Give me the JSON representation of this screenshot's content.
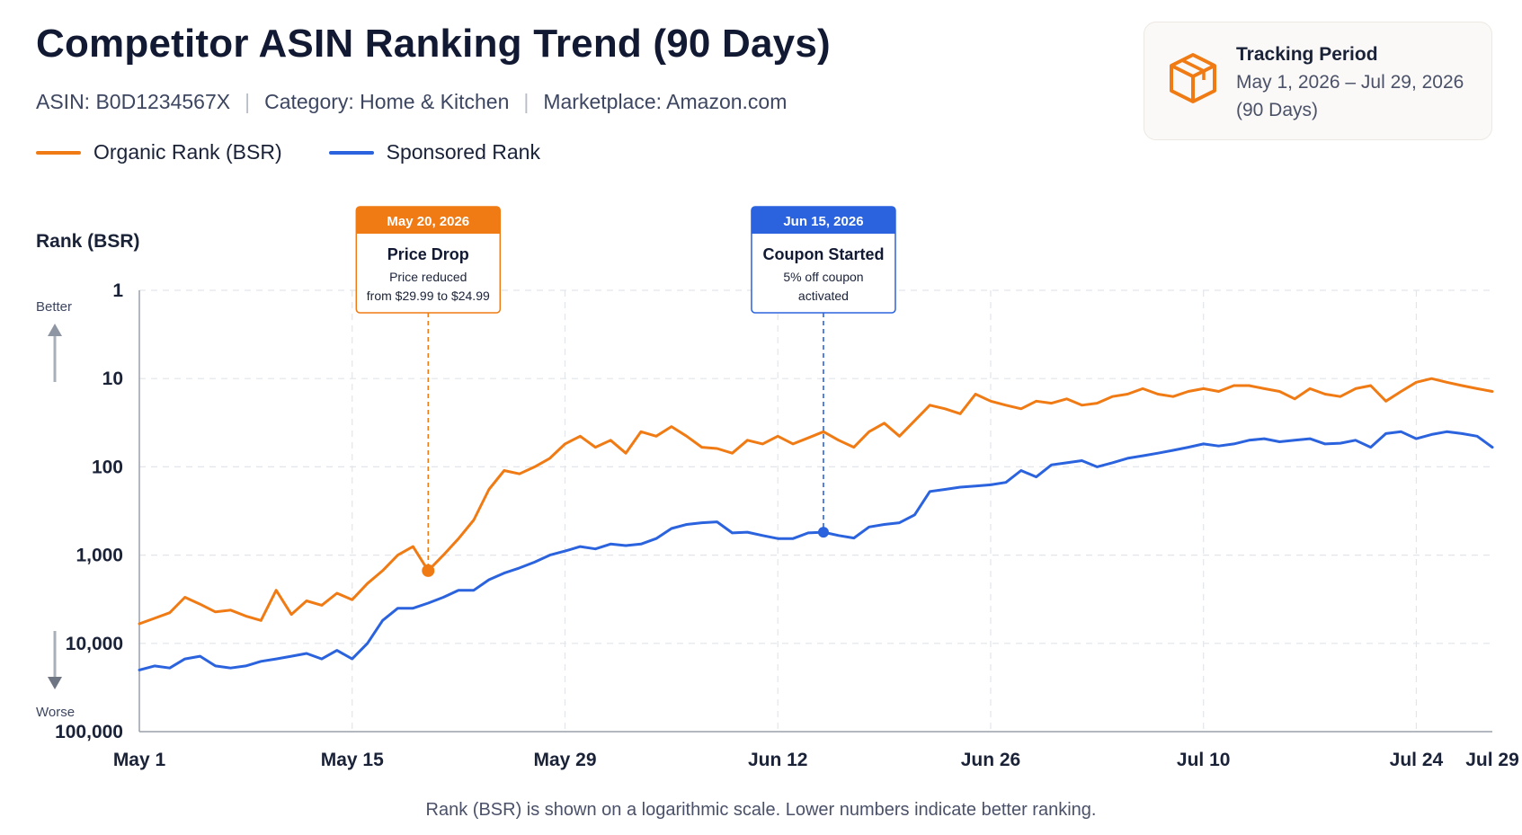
{
  "header": {
    "title": "Competitor ASIN Ranking Trend (90 Days)",
    "asin": "ASIN: B0D1234567X",
    "category": "Category: Home & Kitchen",
    "marketplace": "Marketplace: Amazon.com",
    "separator": "|"
  },
  "tracking_period": {
    "label": "Tracking Period",
    "range": "May 1, 2026 – Jul 29, 2026",
    "days": "(90 Days)",
    "icon": "box-icon",
    "accent": "#f07b14"
  },
  "footnote": "Rank (BSR) is shown on a logarithmic scale. Lower numbers indicate better ranking.",
  "chart_data": {
    "type": "line",
    "title": "Competitor ASIN Ranking Trend (90 Days)",
    "ylabel": "Rank (BSR)",
    "y_scale": "log",
    "y_inverted": true,
    "ylim": [
      100000,
      1
    ],
    "y_ticks": [
      1,
      10,
      100,
      1000,
      10000,
      100000
    ],
    "y_tick_labels": [
      "1",
      "10",
      "100",
      "1,000",
      "10,000",
      "100,000"
    ],
    "y_direction_labels": {
      "top": "Better",
      "bottom": "Worse"
    },
    "x_ticks": [
      0,
      14,
      28,
      42,
      56,
      70,
      84,
      89
    ],
    "x_tick_labels": [
      "May 1",
      "May 15",
      "May 29",
      "Jun 12",
      "Jun 26",
      "Jul 10",
      "Jul 24",
      "Jul 29"
    ],
    "x_unit": "days since May 1, 2026",
    "grid": true,
    "legend_position": "top-left",
    "series": [
      {
        "name": "Organic Rank (BSR)",
        "color": "#f07b14",
        "x": [
          0,
          1,
          2,
          3,
          4,
          5,
          6,
          7,
          8,
          9,
          10,
          11,
          12,
          13,
          14,
          15,
          16,
          17,
          18,
          19,
          20,
          21,
          22,
          23,
          24,
          25,
          26,
          27,
          28,
          29,
          30,
          31,
          32,
          33,
          34,
          35,
          36,
          37,
          38,
          39,
          40,
          41,
          42,
          43,
          44,
          45,
          46,
          47,
          48,
          49,
          50,
          51,
          52,
          53,
          54,
          55,
          56,
          57,
          58,
          59,
          60,
          61,
          62,
          63,
          64,
          65,
          66,
          67,
          68,
          69,
          70,
          71,
          72,
          73,
          74,
          75,
          76,
          77,
          78,
          79,
          80,
          81,
          82,
          83,
          84,
          85,
          86,
          87,
          88,
          89
        ],
        "values": [
          6000,
          5200,
          4500,
          3000,
          3600,
          4400,
          4200,
          4900,
          5500,
          2500,
          4700,
          3300,
          3700,
          2700,
          3200,
          2100,
          1500,
          1000,
          800,
          1500,
          1000,
          650,
          400,
          180,
          110,
          120,
          100,
          80,
          55,
          45,
          60,
          50,
          70,
          40,
          45,
          35,
          45,
          60,
          62,
          70,
          50,
          55,
          45,
          55,
          47,
          40,
          50,
          60,
          40,
          32,
          45,
          30,
          20,
          22,
          25,
          15,
          18,
          20,
          22,
          18,
          19,
          17,
          20,
          19,
          16,
          15,
          13,
          15,
          16,
          14,
          13,
          14,
          12,
          12,
          13,
          14,
          17,
          13,
          15,
          16,
          13,
          12,
          18,
          14,
          11,
          10,
          11,
          12,
          13,
          14
        ]
      },
      {
        "name": "Sponsored Rank",
        "color": "#2b63de",
        "x": [
          0,
          1,
          2,
          3,
          4,
          5,
          6,
          7,
          8,
          9,
          10,
          11,
          12,
          13,
          14,
          15,
          16,
          17,
          18,
          19,
          20,
          21,
          22,
          23,
          24,
          25,
          26,
          27,
          28,
          29,
          30,
          31,
          32,
          33,
          34,
          35,
          36,
          37,
          38,
          39,
          40,
          41,
          42,
          43,
          44,
          45,
          46,
          47,
          48,
          49,
          50,
          51,
          52,
          53,
          54,
          55,
          56,
          57,
          58,
          59,
          60,
          61,
          62,
          63,
          64,
          65,
          66,
          67,
          68,
          69,
          70,
          71,
          72,
          73,
          74,
          75,
          76,
          77,
          78,
          79,
          80,
          81,
          82,
          83,
          84,
          85,
          86,
          87,
          88,
          89
        ],
        "values": [
          20000,
          18000,
          19000,
          15000,
          14000,
          18000,
          19000,
          18000,
          16000,
          15000,
          14000,
          13000,
          15000,
          12000,
          15000,
          10000,
          5500,
          4000,
          4000,
          3500,
          3000,
          2500,
          2500,
          1900,
          1600,
          1400,
          1200,
          1000,
          900,
          800,
          850,
          750,
          780,
          750,
          650,
          500,
          450,
          430,
          420,
          560,
          550,
          600,
          650,
          650,
          560,
          550,
          600,
          640,
          480,
          450,
          430,
          350,
          190,
          180,
          170,
          165,
          160,
          150,
          110,
          130,
          95,
          90,
          85,
          100,
          90,
          80,
          75,
          70,
          65,
          60,
          55,
          58,
          55,
          50,
          48,
          52,
          50,
          48,
          55,
          54,
          50,
          60,
          42,
          40,
          48,
          43,
          40,
          42,
          45,
          60
        ]
      }
    ],
    "annotations": [
      {
        "date": "May 20, 2026",
        "x": 19,
        "title": "Price Drop",
        "line1": "Price reduced",
        "line2": "from $29.99 to $24.99",
        "series": 0,
        "color": "#f07b14"
      },
      {
        "date": "Jun 15, 2026",
        "x": 45,
        "title": "Coupon Started",
        "line1": "5% off coupon",
        "line2": "activated",
        "series": 1,
        "color": "#2b63de"
      }
    ]
  }
}
